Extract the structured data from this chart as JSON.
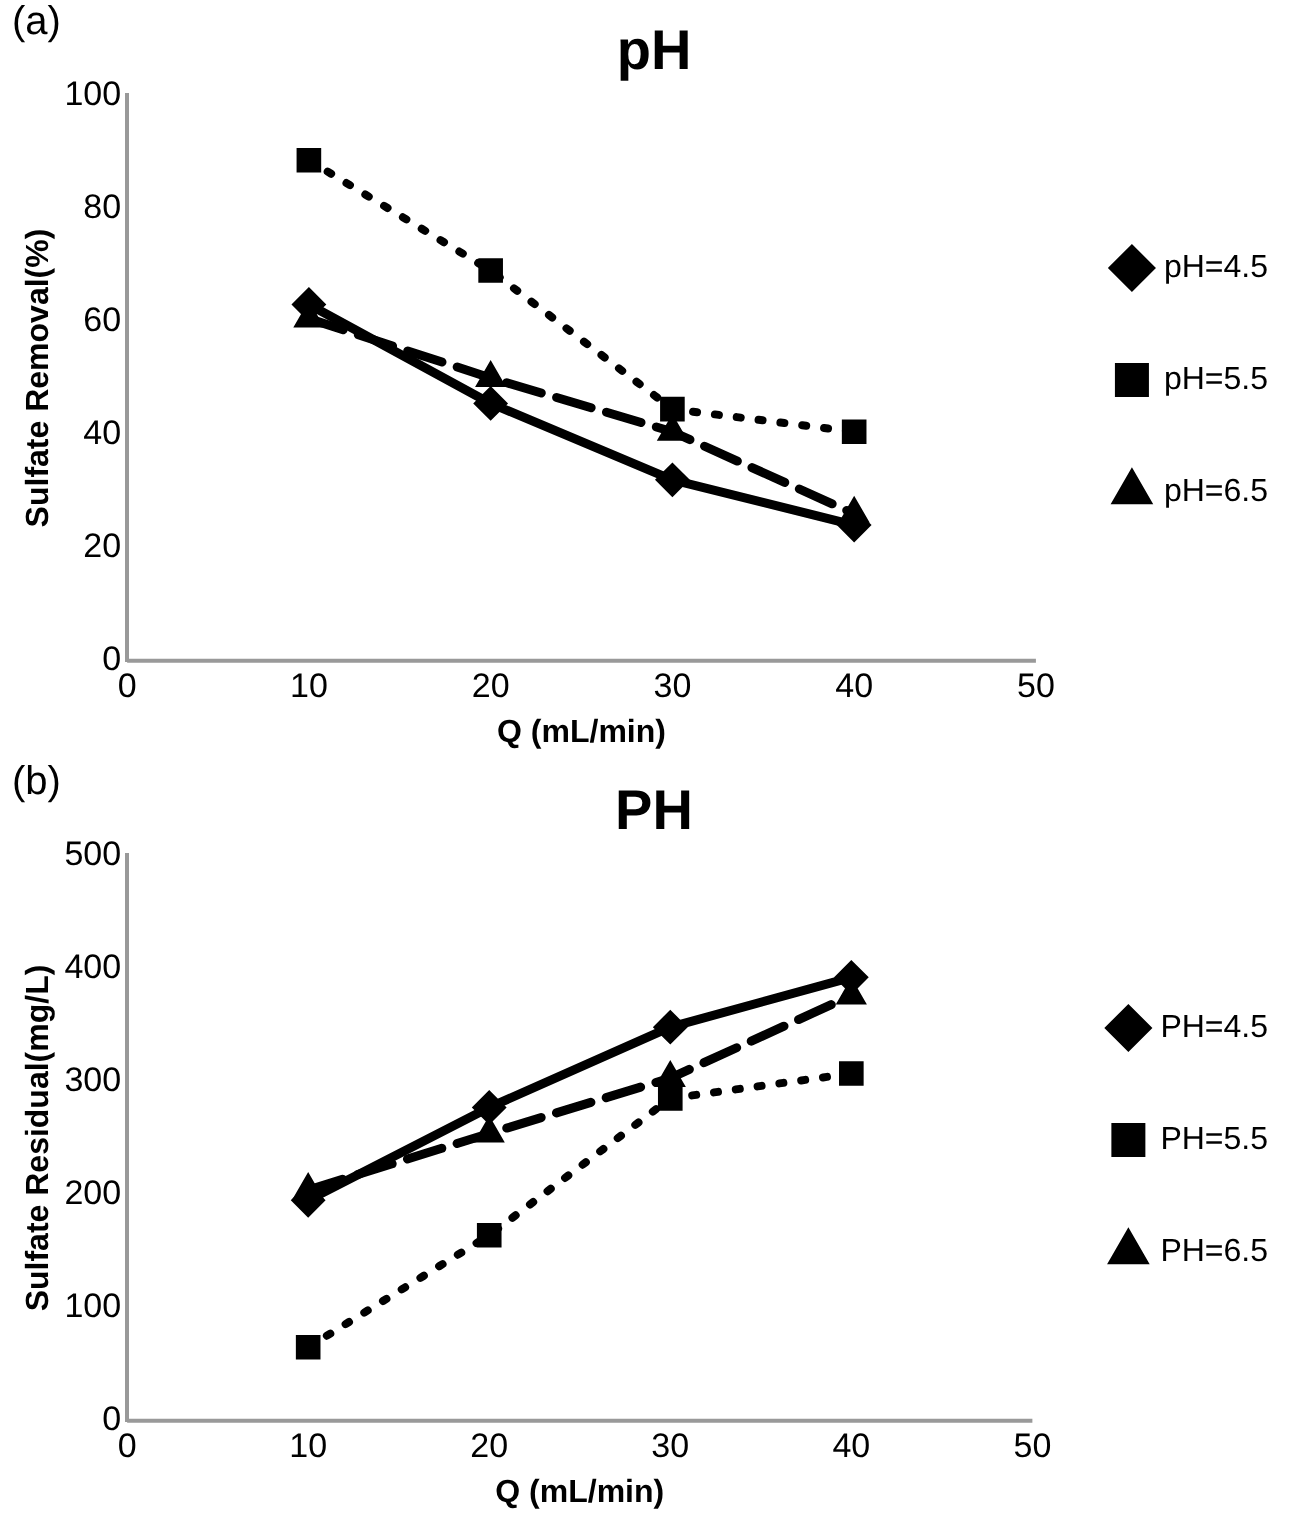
{
  "chart_data": [
    {
      "type": "line",
      "title": "pH",
      "xlabel": "Q (mL/min)",
      "ylabel": "Sulfate Removal(%)",
      "annotations": [
        "(a)"
      ],
      "x": [
        10,
        20,
        30,
        40
      ],
      "xlim": [
        0,
        50
      ],
      "xticks": [
        0,
        10,
        20,
        30,
        40,
        50
      ],
      "ylim": [
        0,
        100
      ],
      "yticks": [
        0,
        20,
        40,
        60,
        80,
        100
      ],
      "grid": false,
      "legend": "right",
      "series": [
        {
          "name": "pH=4.5",
          "color": "#000000",
          "values": [
            63,
            45.5,
            32,
            24
          ],
          "marker": "diamond",
          "line_style": "solid"
        },
        {
          "name": "pH=5.5",
          "color": "#000000",
          "values": [
            88.5,
            69,
            44.5,
            40.5
          ],
          "marker": "square",
          "line_style": "dotted"
        },
        {
          "name": "pH=6.5",
          "color": "#000000",
          "values": [
            60.5,
            50,
            40.5,
            26
          ],
          "marker": "triangle",
          "line_style": "dashed"
        }
      ]
    },
    {
      "type": "line",
      "title": "PH",
      "xlabel": "Q (mL/min)",
      "ylabel": "Sulfate Residual(mg/L)",
      "annotations": [
        "(b)"
      ],
      "x": [
        10,
        20,
        30,
        40
      ],
      "xlim": [
        0,
        50
      ],
      "xticks": [
        0,
        10,
        20,
        30,
        40,
        50
      ],
      "ylim": [
        0,
        500
      ],
      "yticks": [
        0,
        100,
        200,
        300,
        400,
        500
      ],
      "grid": false,
      "legend": "right",
      "series": [
        {
          "name": "PH=4.5",
          "color": "#000000",
          "values": [
            195,
            277,
            348,
            392
          ],
          "marker": "diamond",
          "line_style": "solid"
        },
        {
          "name": "PH=5.5",
          "color": "#000000",
          "values": [
            65,
            164,
            285,
            307
          ],
          "marker": "square",
          "line_style": "dotted"
        },
        {
          "name": "PH=6.5",
          "color": "#000000",
          "values": [
            204,
            254,
            303,
            376
          ],
          "marker": "triangle",
          "line_style": "dashed"
        }
      ]
    }
  ]
}
